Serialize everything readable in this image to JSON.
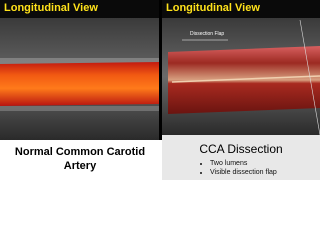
{
  "panels": [
    {
      "heading": "Longitudinal View",
      "caption": "Normal Common Carotid Artery"
    },
    {
      "heading": "Longitudinal View",
      "image_label": "Dissection Flap",
      "caption": "CCA Dissection",
      "bullets": [
        "Two lumens",
        "Visible dissection flap"
      ]
    }
  ]
}
